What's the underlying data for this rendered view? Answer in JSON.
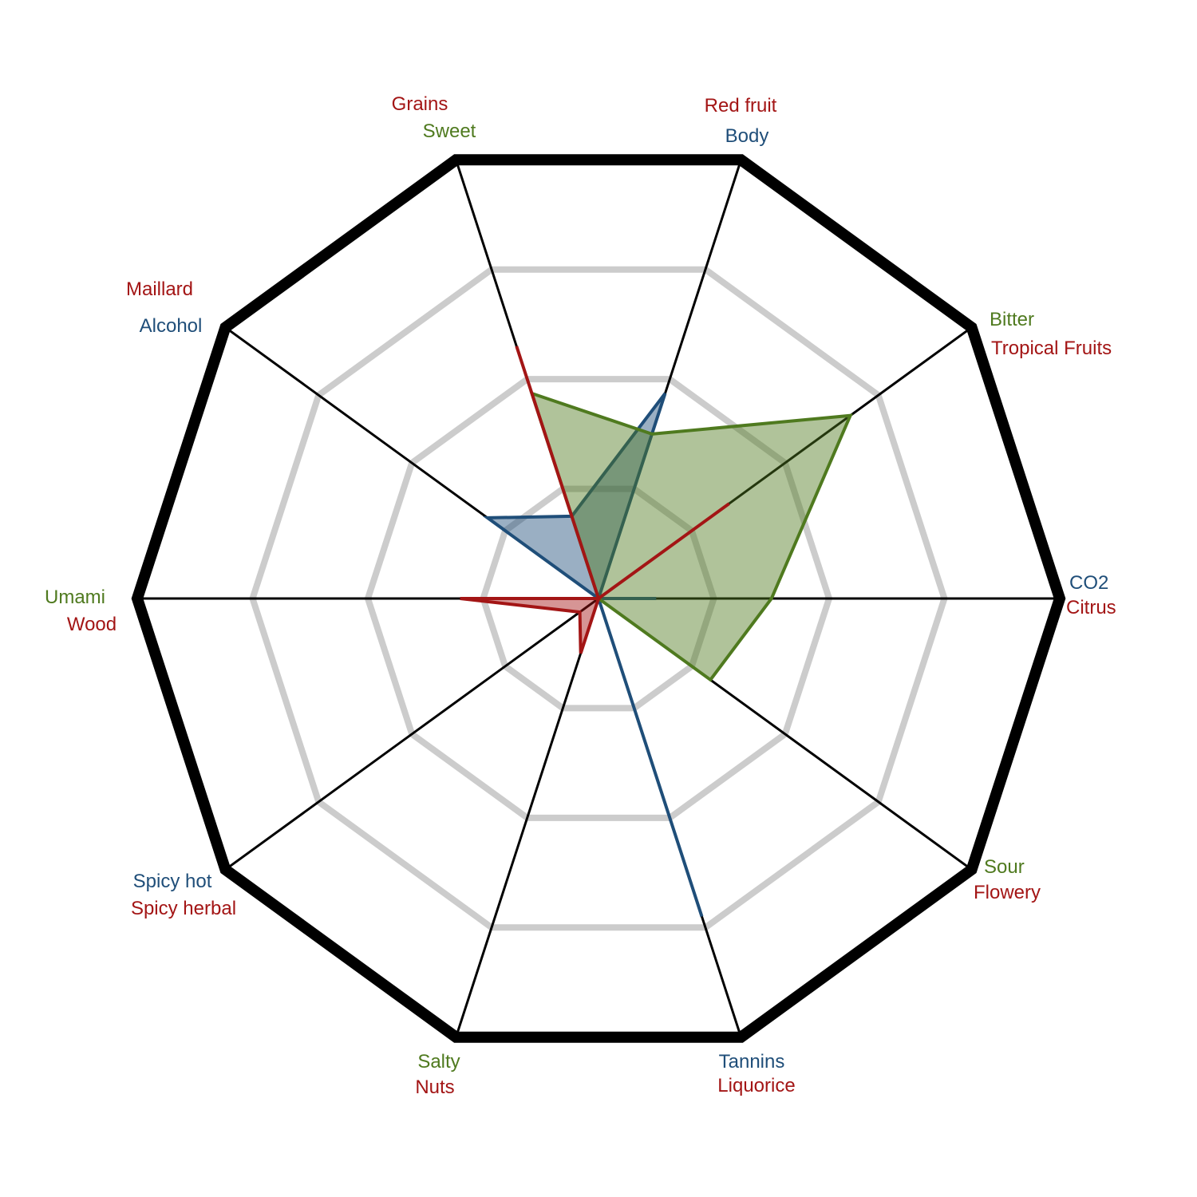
{
  "chart_data": {
    "type": "radar",
    "title": "",
    "axes": [
      {
        "labels": [
          {
            "text": "Red fruit",
            "series": "red"
          },
          {
            "text": "Body",
            "series": "blue"
          }
        ]
      },
      {
        "labels": [
          {
            "text": "Bitter",
            "series": "green"
          },
          {
            "text": "Tropical Fruits",
            "series": "red"
          }
        ]
      },
      {
        "labels": [
          {
            "text": "CO2",
            "series": "blue"
          },
          {
            "text": "Citrus",
            "series": "red"
          }
        ]
      },
      {
        "labels": [
          {
            "text": "Sour",
            "series": "green"
          },
          {
            "text": "Flowery",
            "series": "red"
          }
        ]
      },
      {
        "labels": [
          {
            "text": "Tannins",
            "series": "blue"
          },
          {
            "text": "Liquorice",
            "series": "red"
          }
        ]
      },
      {
        "labels": [
          {
            "text": "Salty",
            "series": "green"
          },
          {
            "text": "Nuts",
            "series": "red"
          }
        ]
      },
      {
        "labels": [
          {
            "text": "Spicy hot",
            "series": "blue"
          },
          {
            "text": "Spicy herbal",
            "series": "red"
          }
        ]
      },
      {
        "labels": [
          {
            "text": "Umami",
            "series": "green"
          },
          {
            "text": "Wood",
            "series": "red"
          }
        ]
      },
      {
        "labels": [
          {
            "text": "Maillard",
            "series": "red"
          },
          {
            "text": "Alcohol",
            "series": "blue"
          }
        ]
      },
      {
        "labels": [
          {
            "text": "Grains",
            "series": "red"
          },
          {
            "text": "Sweet",
            "series": "green"
          }
        ]
      }
    ],
    "scale": {
      "min": 0,
      "max": 4,
      "rings": [
        1,
        2,
        3
      ]
    },
    "grid": true,
    "series": [
      {
        "key": "blue",
        "color": "#1f4e79",
        "values": [
          1.87,
          0,
          0.5,
          0,
          2.9,
          0,
          0,
          0,
          1.19,
          0.75
        ]
      },
      {
        "key": "green",
        "color": "#4f7a1f",
        "values": [
          1.5,
          2.7,
          1.5,
          1.2,
          0,
          0,
          0,
          0,
          0,
          1.87
        ]
      },
      {
        "key": "red",
        "color": "#a31515",
        "values": [
          0,
          1.4,
          0,
          0,
          0,
          0.5,
          0.2,
          1.2,
          0,
          2.3
        ]
      }
    ]
  }
}
